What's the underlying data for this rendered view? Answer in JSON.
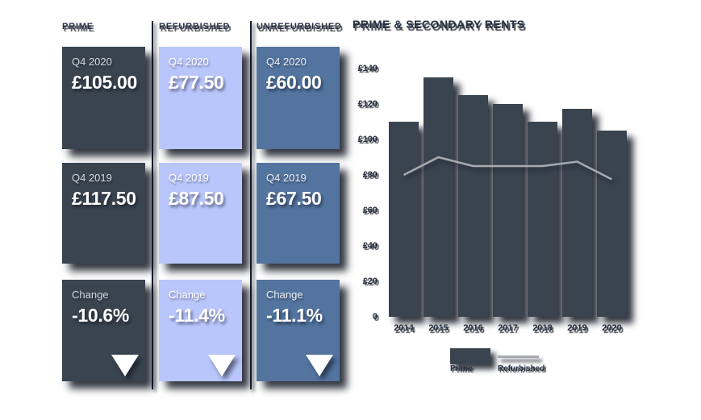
{
  "columns": [
    {
      "header": "PRIME",
      "theme": "dark",
      "accent_color": "#39444f",
      "cards": [
        {
          "label": "Q4 2020",
          "value": "£105.00"
        },
        {
          "label": "Q4 2019",
          "value": "£117.50"
        },
        {
          "label": "Change",
          "value": "-10.6%",
          "icon": "down-triangle-icon"
        }
      ]
    },
    {
      "header": "REFURBISHED",
      "theme": "peri",
      "accent_color": "#b9c6fb",
      "cards": [
        {
          "label": "Q4 2020",
          "value": "£77.50"
        },
        {
          "label": "Q4 2019",
          "value": "£87.50"
        },
        {
          "label": "Change",
          "value": "-11.4%",
          "icon": "down-triangle-icon"
        }
      ]
    },
    {
      "header": "UNREFURBISHED",
      "theme": "steel",
      "accent_color": "#53749f",
      "cards": [
        {
          "label": "Q4 2020",
          "value": "£60.00"
        },
        {
          "label": "Q4 2019",
          "value": "£67.50"
        },
        {
          "label": "Change",
          "value": "-11.1%",
          "icon": "down-triangle-icon"
        }
      ]
    }
  ],
  "chart_data": {
    "type": "bar",
    "title": "PRIME & SECONDARY RENTS",
    "categories": [
      "2014",
      "2015",
      "2016",
      "2017",
      "2018",
      "2019",
      "2020"
    ],
    "series": [
      {
        "name": "Prime",
        "type": "bar",
        "color": "#39444f",
        "values": [
          110,
          135,
          125,
          120,
          110,
          117.5,
          105
        ]
      },
      {
        "name": "Refurbished",
        "type": "line",
        "color": "#a6aaaf",
        "values": [
          80,
          90,
          85,
          85,
          85,
          87.5,
          77.5
        ]
      }
    ],
    "xlabel": "",
    "ylabel": "",
    "ylim": [
      0,
      140
    ],
    "ytick_values": [
      140,
      120,
      100,
      80,
      60,
      40,
      20,
      0
    ],
    "yticks": [
      "£140",
      "£120",
      "£100",
      "£80",
      "£60",
      "£40",
      "£20",
      "0"
    ],
    "grid": false,
    "legend_position": "bottom"
  },
  "colors": {
    "background": "#ffffff",
    "dark_slate": "#39444f",
    "periwinkle": "#b9c6fb",
    "steel_blue": "#53749f",
    "line_gray": "#a6aaaf",
    "heading_text": "#272e40",
    "card_text": "#ffffff"
  }
}
